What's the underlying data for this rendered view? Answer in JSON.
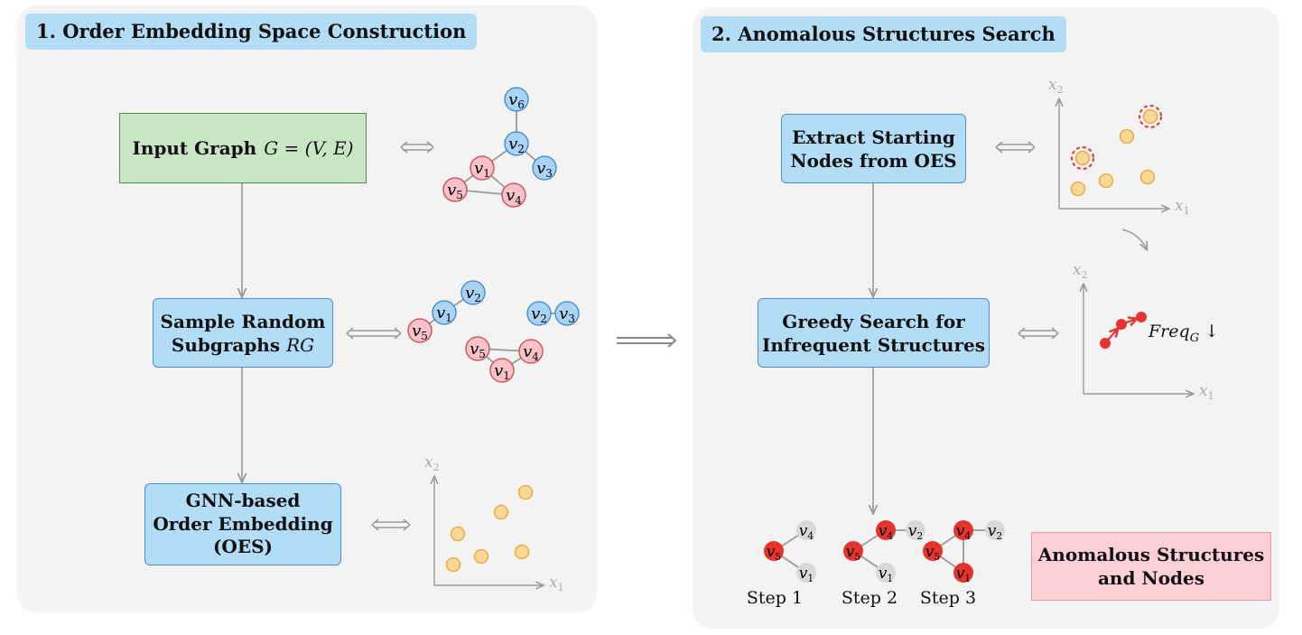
{
  "panel1": {
    "title": "1. Order Embedding Space Construction",
    "input_graph_label": "Input Graph",
    "input_graph_math": "G = (V, E)",
    "sample_line1": "Sample Random",
    "sample_line2": "Subgraphs",
    "sample_math": "RG",
    "gnn_line1": "GNN-based",
    "gnn_line2": "Order Embedding",
    "gnn_line3": "(OES)"
  },
  "panel2": {
    "title": "2. Anomalous Structures Search",
    "extract_line1": "Extract Starting",
    "extract_line2": "Nodes from OES",
    "greedy_line1": "Greedy Search for",
    "greedy_line2": "Infrequent Structures",
    "result_line1": "Anomalous Structures",
    "result_line2": "and Nodes",
    "freq_label": "Freq",
    "freq_sub": "G",
    "freq_arrow": "↓"
  },
  "steps": [
    "Step 1",
    "Step 2",
    "Step 3"
  ],
  "axes": {
    "x": "x",
    "x_sub": "1",
    "y": "x",
    "y_sub": "2"
  },
  "nodes": {
    "v1": {
      "v": "v",
      "s": "1"
    },
    "v2": {
      "v": "v",
      "s": "2"
    },
    "v3": {
      "v": "v",
      "s": "3"
    },
    "v4": {
      "v": "v",
      "s": "4"
    },
    "v5": {
      "v": "v",
      "s": "5"
    },
    "v6": {
      "v": "v",
      "s": "6"
    }
  },
  "colors": {
    "panel_bg": "#f3f3f3",
    "blue_box": "#b3dcf7",
    "green_box": "#c9e6c4",
    "pink_box": "#fcd0d4",
    "node_blue": "#a9d4f5",
    "node_pink": "#f7c3c8",
    "node_red": "#e5342c",
    "node_gray": "#d9d9d9",
    "point_orange": "#fcd79a",
    "arrow_gray": "#999999"
  },
  "icons": [
    "double-arrow-icon",
    "down-arrow-icon",
    "curved-arrow-icon"
  ]
}
